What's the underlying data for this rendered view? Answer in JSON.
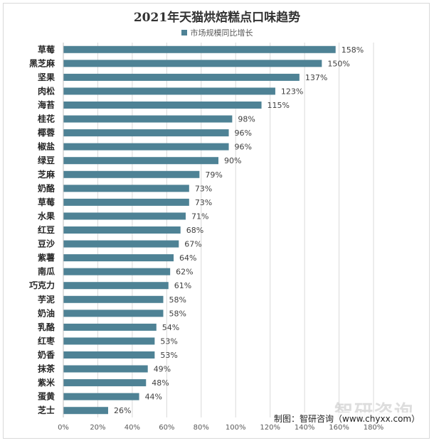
{
  "chart_data": {
    "type": "bar",
    "orientation": "horizontal",
    "title": "2021年天猫烘焙糕点口味趋势",
    "legend": {
      "position": "top",
      "entries": [
        "市场规模同比增长"
      ]
    },
    "xlim": [
      0,
      180
    ],
    "xticks": [
      "0%",
      "20%",
      "40%",
      "60%",
      "80%",
      "100%",
      "120%",
      "140%",
      "160%",
      "180%"
    ],
    "grid": true,
    "bar_color": "#4e8295",
    "series": [
      {
        "name": "市场规模同比增长",
        "categories": [
          "草莓",
          "黑芝麻",
          "坚果",
          "肉松",
          "海苔",
          "桂花",
          "椰蓉",
          "椒盐",
          "绿豆",
          "芝麻",
          "奶酪",
          "草莓",
          "水果",
          "红豆",
          "豆沙",
          "紫薯",
          "南瓜",
          "巧克力",
          "芋泥",
          "奶油",
          "乳酪",
          "红枣",
          "奶香",
          "抹茶",
          "紫米",
          "蛋黄",
          "芝士"
        ],
        "values": [
          158,
          150,
          137,
          123,
          115,
          98,
          96,
          96,
          90,
          79,
          73,
          73,
          71,
          68,
          67,
          64,
          62,
          61,
          58,
          58,
          54,
          53,
          53,
          49,
          48,
          44,
          26
        ],
        "labels": [
          "158%",
          "150%",
          "137%",
          "123%",
          "115%",
          "98%",
          "96%",
          "96%",
          "90%",
          "79%",
          "73%",
          "73%",
          "71%",
          "68%",
          "67%",
          "64%",
          "62%",
          "61%",
          "58%",
          "58%",
          "54%",
          "53%",
          "53%",
          "49%",
          "48%",
          "44%",
          "26%"
        ]
      }
    ]
  },
  "source_text": "制图：智研咨询（www.chyxx.com）",
  "watermark_text": "智研咨询"
}
